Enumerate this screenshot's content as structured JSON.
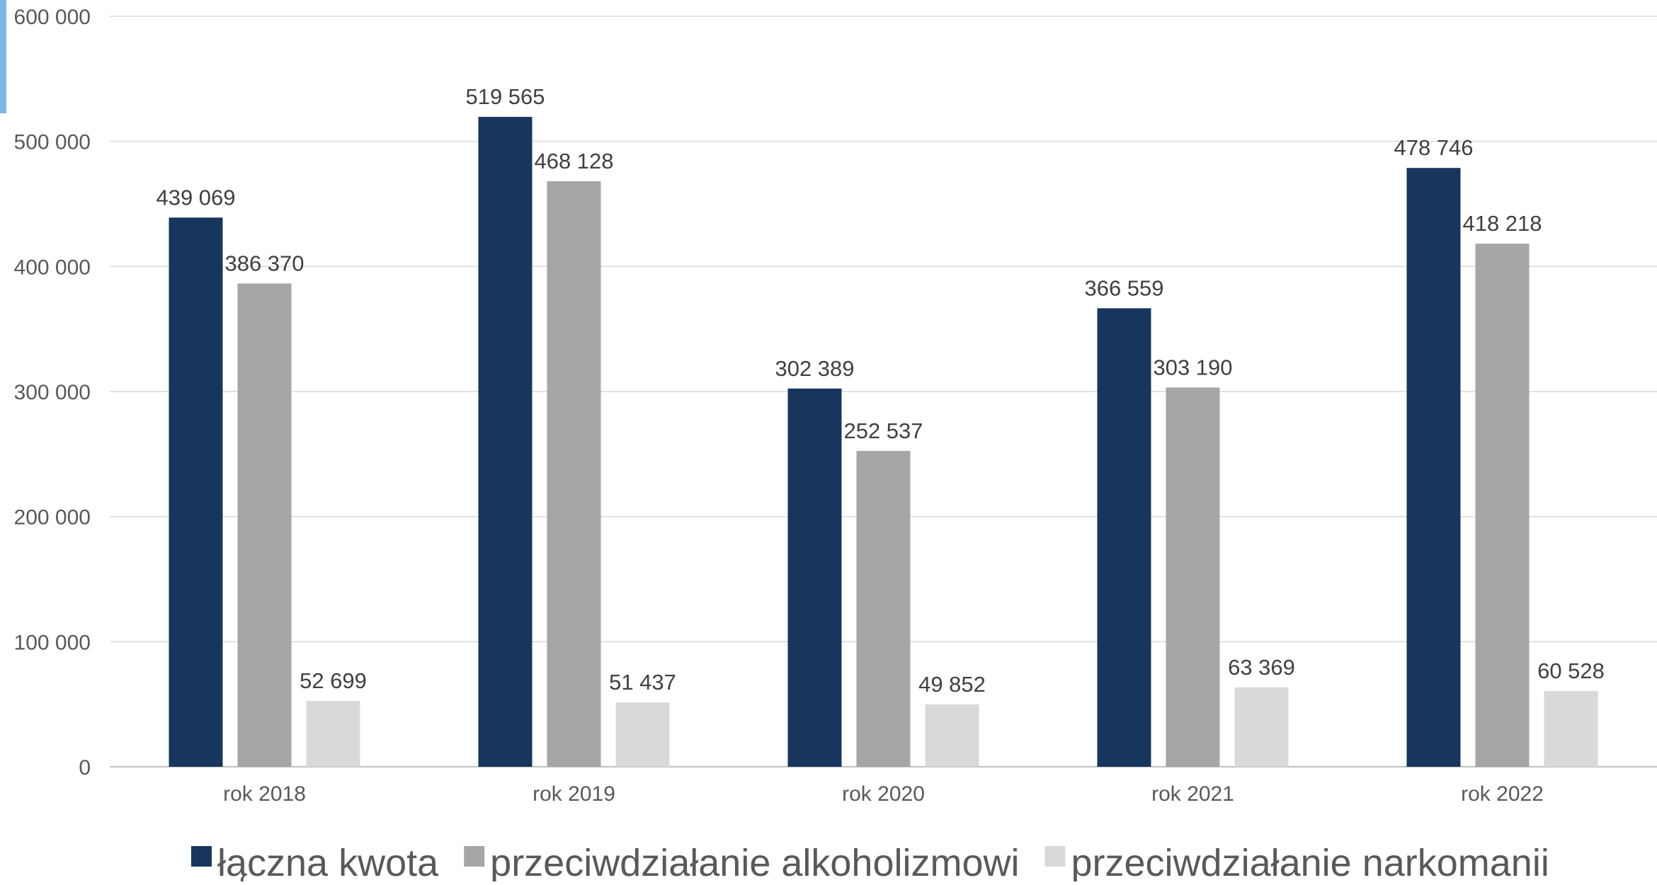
{
  "colors": {
    "accent_strip": "#7fb8e3",
    "gridline": "#d9d9d9",
    "axis": "#bfbfbf"
  },
  "chart_data": {
    "type": "bar",
    "title": "",
    "xlabel": "",
    "ylabel": "",
    "ylim": [
      0,
      600000
    ],
    "y_ticks": [
      0,
      100000,
      200000,
      300000,
      400000,
      500000,
      600000
    ],
    "y_tick_labels": [
      "0",
      "100 000",
      "200 000",
      "300 000",
      "400 000",
      "500 000",
      "600 000"
    ],
    "grid": true,
    "legend_position": "bottom",
    "categories": [
      "rok 2018",
      "rok 2019",
      "rok 2020",
      "rok 2021",
      "rok 2022"
    ],
    "series": [
      {
        "name": "łączna kwota",
        "color": "#17365d",
        "values": [
          439069,
          519565,
          302389,
          366559,
          478746
        ],
        "labels": [
          "439 069",
          "519 565",
          "302 389",
          "366 559",
          "478 746"
        ]
      },
      {
        "name": "przeciwdziałanie alkoholizmowi",
        "color": "#a6a6a6",
        "values": [
          386370,
          468128,
          252537,
          303190,
          418218
        ],
        "labels": [
          "386 370",
          "468 128",
          "252 537",
          "303 190",
          "418 218"
        ]
      },
      {
        "name": "przeciwdziałanie narkomanii",
        "color": "#d9d9d9",
        "values": [
          52699,
          51437,
          49852,
          63369,
          60528
        ],
        "labels": [
          "52 699",
          "51 437",
          "49 852",
          "63 369",
          "60 528"
        ]
      }
    ]
  }
}
